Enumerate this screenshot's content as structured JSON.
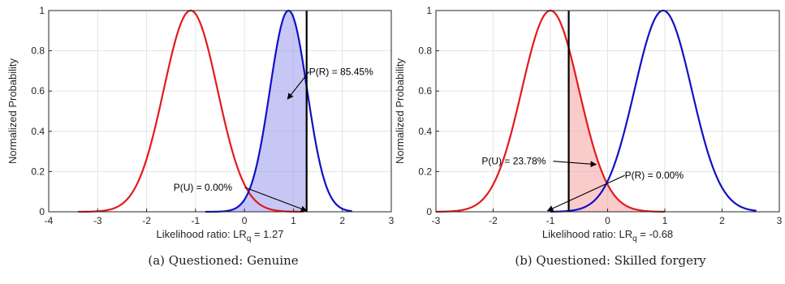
{
  "chart_data": [
    {
      "type": "line",
      "caption": "(a) Questioned: Genuine",
      "xlabel": "Likelihood ratio: LR",
      "xlabel_sub": "q",
      "xlabel_value": " = 1.27",
      "ylabel": "Normalized Probability",
      "xlim": [
        -4,
        3
      ],
      "ylim": [
        0,
        1
      ],
      "grid": true,
      "x_ticks": [
        -4,
        -3,
        -2,
        -1,
        0,
        1,
        2,
        3
      ],
      "y_ticks": [
        0,
        0.2,
        0.4,
        0.6,
        0.8,
        1
      ],
      "x_tick_labels": [
        "-4",
        "-3",
        "-2",
        "-1",
        "0",
        "1",
        "2",
        "3"
      ],
      "y_tick_labels": [
        "0",
        "0.2",
        "0.4",
        "0.6",
        "0.8",
        "1"
      ],
      "series": [
        {
          "color": "#e31a1c",
          "type": "gaussian",
          "mean": -1.1,
          "sigma": 0.55,
          "x_range": [
            -3.4,
            1.2
          ]
        },
        {
          "color": "#1010c8",
          "type": "gaussian",
          "mean": 0.9,
          "sigma": 0.38,
          "x_range": [
            -0.8,
            2.2
          ]
        }
      ],
      "threshold_line": {
        "x": 1.27,
        "color": "#000000"
      },
      "shaded_area": {
        "series_index": 1,
        "from": -1.0,
        "to": 1.27,
        "color": "#9999ee"
      },
      "annotations": [
        {
          "text": "P(R) = 85.45%",
          "text_at": [
            1.32,
            0.68
          ],
          "arrow_to": [
            0.88,
            0.56
          ]
        },
        {
          "text": "P(U) = 0.00%",
          "text_at": [
            -1.45,
            0.105
          ],
          "arrow_to": [
            1.27,
            0.005
          ]
        }
      ]
    },
    {
      "type": "line",
      "caption": "(b) Questioned: Skilled forgery",
      "xlabel": "Likelihood ratio: LR",
      "xlabel_sub": "q",
      "xlabel_value": " = -0.68",
      "ylabel": "Normalized Probability",
      "xlim": [
        -3,
        3
      ],
      "ylim": [
        0,
        1
      ],
      "grid": true,
      "x_ticks": [
        -3,
        -2,
        -1,
        0,
        1,
        2,
        3
      ],
      "y_ticks": [
        0,
        0.2,
        0.4,
        0.6,
        0.8,
        1
      ],
      "x_tick_labels": [
        "-3",
        "-2",
        "-1",
        "0",
        "1",
        "2",
        "3"
      ],
      "y_tick_labels": [
        "0",
        "0.2",
        "0.4",
        "0.6",
        "0.8",
        "1"
      ],
      "series": [
        {
          "color": "#e31a1c",
          "type": "gaussian",
          "mean": -1.0,
          "sigma": 0.5,
          "x_range": [
            -3.0,
            1.0
          ]
        },
        {
          "color": "#1010c8",
          "type": "gaussian",
          "mean": 0.97,
          "sigma": 0.5,
          "x_range": [
            -1.0,
            2.6
          ]
        }
      ],
      "threshold_line": {
        "x": -0.68,
        "color": "#000000"
      },
      "shaded_area": {
        "series_index": 0,
        "from": -0.68,
        "to": 1.0,
        "color": "#f5a0a0"
      },
      "annotations": [
        {
          "text": "P(U) = 23.78%",
          "text_at": [
            -2.2,
            0.235
          ],
          "arrow_to": [
            -0.2,
            0.235
          ]
        },
        {
          "text": "P(R) = 0.00%",
          "text_at": [
            0.3,
            0.165
          ],
          "arrow_to": [
            -1.05,
            0.005
          ]
        }
      ]
    }
  ]
}
